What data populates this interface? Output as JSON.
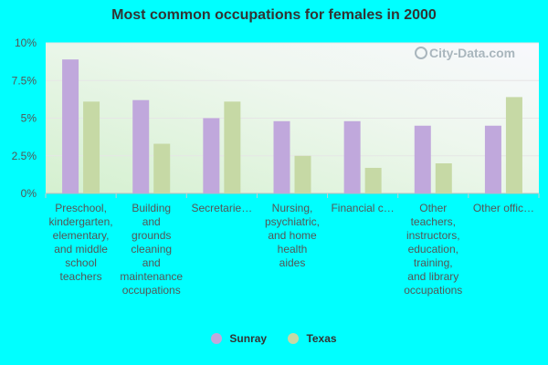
{
  "chart_data": {
    "type": "bar",
    "title": "Most common occupations for females in 2000",
    "categories": [
      "Preschool, kindergarten, elementary, and middle school teachers",
      "Building and grounds cleaning and maintenance occupations",
      "Secretarie...",
      "Nursing, psychiatric, and home health aides",
      "Financial c...",
      "Other teachers, instructors, education, training, and library occupations",
      "Other offic..."
    ],
    "series": [
      {
        "name": "Sunray",
        "color": "#c0a8dc",
        "values": [
          8.9,
          6.2,
          5.0,
          4.8,
          4.8,
          4.5,
          4.5
        ]
      },
      {
        "name": "Texas",
        "color": "#c6d9a5",
        "values": [
          6.1,
          3.3,
          6.1,
          2.5,
          1.7,
          2.0,
          6.4
        ]
      }
    ],
    "ylim": [
      0,
      10
    ],
    "yticks": [
      "0%",
      "2.5%",
      "5%",
      "7.5%",
      "10%"
    ],
    "ytick_values": [
      0,
      2.5,
      5,
      7.5,
      10
    ],
    "category_lines": [
      [
        "Preschool,",
        "kindergarten,",
        "elementary,",
        "and middle",
        "school",
        "teachers"
      ],
      [
        "Building",
        "and",
        "grounds",
        "cleaning",
        "and",
        "maintenance",
        "occupations"
      ],
      [
        "Secretarie…"
      ],
      [
        "Nursing,",
        "psychiatric,",
        "and home",
        "health",
        "aides"
      ],
      [
        "Financial c…"
      ],
      [
        "Other",
        "teachers,",
        "instructors,",
        "education,",
        "training,",
        "and library",
        "occupations"
      ],
      [
        "Other offic…"
      ]
    ],
    "grid": true,
    "legend_position": "bottom"
  },
  "watermark": "City-Data.com"
}
